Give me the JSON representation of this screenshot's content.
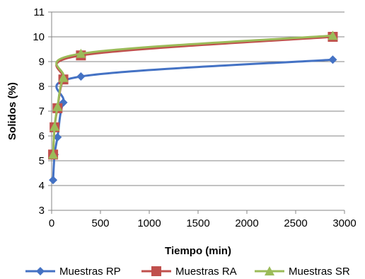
{
  "chart_data": {
    "type": "line",
    "xlabel": "Tiempo (min)",
    "ylabel": "Solidos (%)",
    "xlim": [
      0,
      3000
    ],
    "ylim": [
      3,
      11
    ],
    "x_ticks": [
      0,
      500,
      1000,
      1500,
      2000,
      2500,
      3000
    ],
    "y_ticks": [
      3,
      4,
      5,
      6,
      7,
      8,
      9,
      10,
      11
    ],
    "grid": "horizontal",
    "legend_position": "bottom",
    "series": [
      {
        "name": "Muestras RP",
        "color": "#4472C4",
        "marker": "diamond",
        "x": [
          15,
          30,
          60,
          120,
          300,
          2880
        ],
        "y": [
          4.22,
          5.25,
          5.95,
          7.35,
          8.4,
          9.08
        ]
      },
      {
        "name": "Muestras RA",
        "color": "#C0504D",
        "marker": "square",
        "x": [
          15,
          30,
          60,
          120,
          300,
          2880
        ],
        "y": [
          5.25,
          6.35,
          7.12,
          8.28,
          9.25,
          10.0
        ]
      },
      {
        "name": "Muestras SR",
        "color": "#9BBB59",
        "marker": "triangle",
        "x": [
          15,
          30,
          60,
          120,
          300,
          2880
        ],
        "y": [
          5.25,
          6.38,
          7.18,
          8.35,
          9.32,
          10.05
        ]
      }
    ]
  }
}
